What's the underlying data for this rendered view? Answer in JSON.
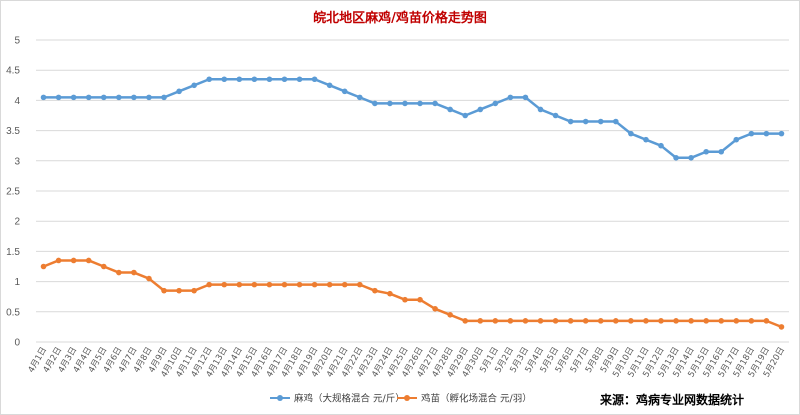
{
  "colors": {
    "series1": "#5b9bd5",
    "series2": "#ed7d31",
    "grid": "#d9d9d9",
    "title": "#c00000"
  },
  "source_text": "来源：鸡病专业网数据统计",
  "chart_data": {
    "type": "line",
    "title": "皖北地区麻鸡/鸡苗价格走势图",
    "xlabel": "",
    "ylabel": "",
    "ylim": [
      0,
      5
    ],
    "yticks": [
      "0",
      "0.5",
      "1",
      "1.5",
      "2",
      "2.5",
      "3",
      "3.5",
      "4",
      "4.5",
      "5"
    ],
    "grid": true,
    "legend_position": "bottom",
    "categories": [
      "4月1日",
      "4月2日",
      "4月3日",
      "4月4日",
      "4月5日",
      "4月6日",
      "4月7日",
      "4月8日",
      "4月9日",
      "4月10日",
      "4月11日",
      "4月12日",
      "4月13日",
      "4月14日",
      "4月15日",
      "4月16日",
      "4月17日",
      "4月18日",
      "4月19日",
      "4月20日",
      "4月21日",
      "4月22日",
      "4月23日",
      "4月24日",
      "4月25日",
      "4月26日",
      "4月27日",
      "4月28日",
      "4月29日",
      "4月30日",
      "5月1日",
      "5月2日",
      "5月3日",
      "5月4日",
      "5月5日",
      "5月6日",
      "5月7日",
      "5月8日",
      "5月9日",
      "5月10日",
      "5月11日",
      "5月12日",
      "5月13日",
      "5月14日",
      "5月15日",
      "5月16日",
      "5月17日",
      "5月18日",
      "5月19日",
      "5月20日"
    ],
    "series": [
      {
        "name": "麻鸡（大规格混合 元/斤）",
        "values": [
          4.05,
          4.05,
          4.05,
          4.05,
          4.05,
          4.05,
          4.05,
          4.05,
          4.05,
          4.15,
          4.25,
          4.35,
          4.35,
          4.35,
          4.35,
          4.35,
          4.35,
          4.35,
          4.35,
          4.25,
          4.15,
          4.05,
          3.95,
          3.95,
          3.95,
          3.95,
          3.95,
          3.85,
          3.75,
          3.85,
          3.95,
          4.05,
          4.05,
          3.85,
          3.75,
          3.65,
          3.65,
          3.65,
          3.65,
          3.45,
          3.35,
          3.25,
          3.05,
          3.05,
          3.15,
          3.15,
          3.35,
          3.45,
          3.45,
          3.45
        ]
      },
      {
        "name": "鸡苗（孵化场混合 元/羽）",
        "values": [
          1.25,
          1.35,
          1.35,
          1.35,
          1.25,
          1.15,
          1.15,
          1.05,
          0.85,
          0.85,
          0.85,
          0.95,
          0.95,
          0.95,
          0.95,
          0.95,
          0.95,
          0.95,
          0.95,
          0.95,
          0.95,
          0.95,
          0.85,
          0.8,
          0.7,
          0.7,
          0.55,
          0.45,
          0.35,
          0.35,
          0.35,
          0.35,
          0.35,
          0.35,
          0.35,
          0.35,
          0.35,
          0.35,
          0.35,
          0.35,
          0.35,
          0.35,
          0.35,
          0.35,
          0.35,
          0.35,
          0.35,
          0.35,
          0.35,
          0.25
        ]
      }
    ]
  }
}
